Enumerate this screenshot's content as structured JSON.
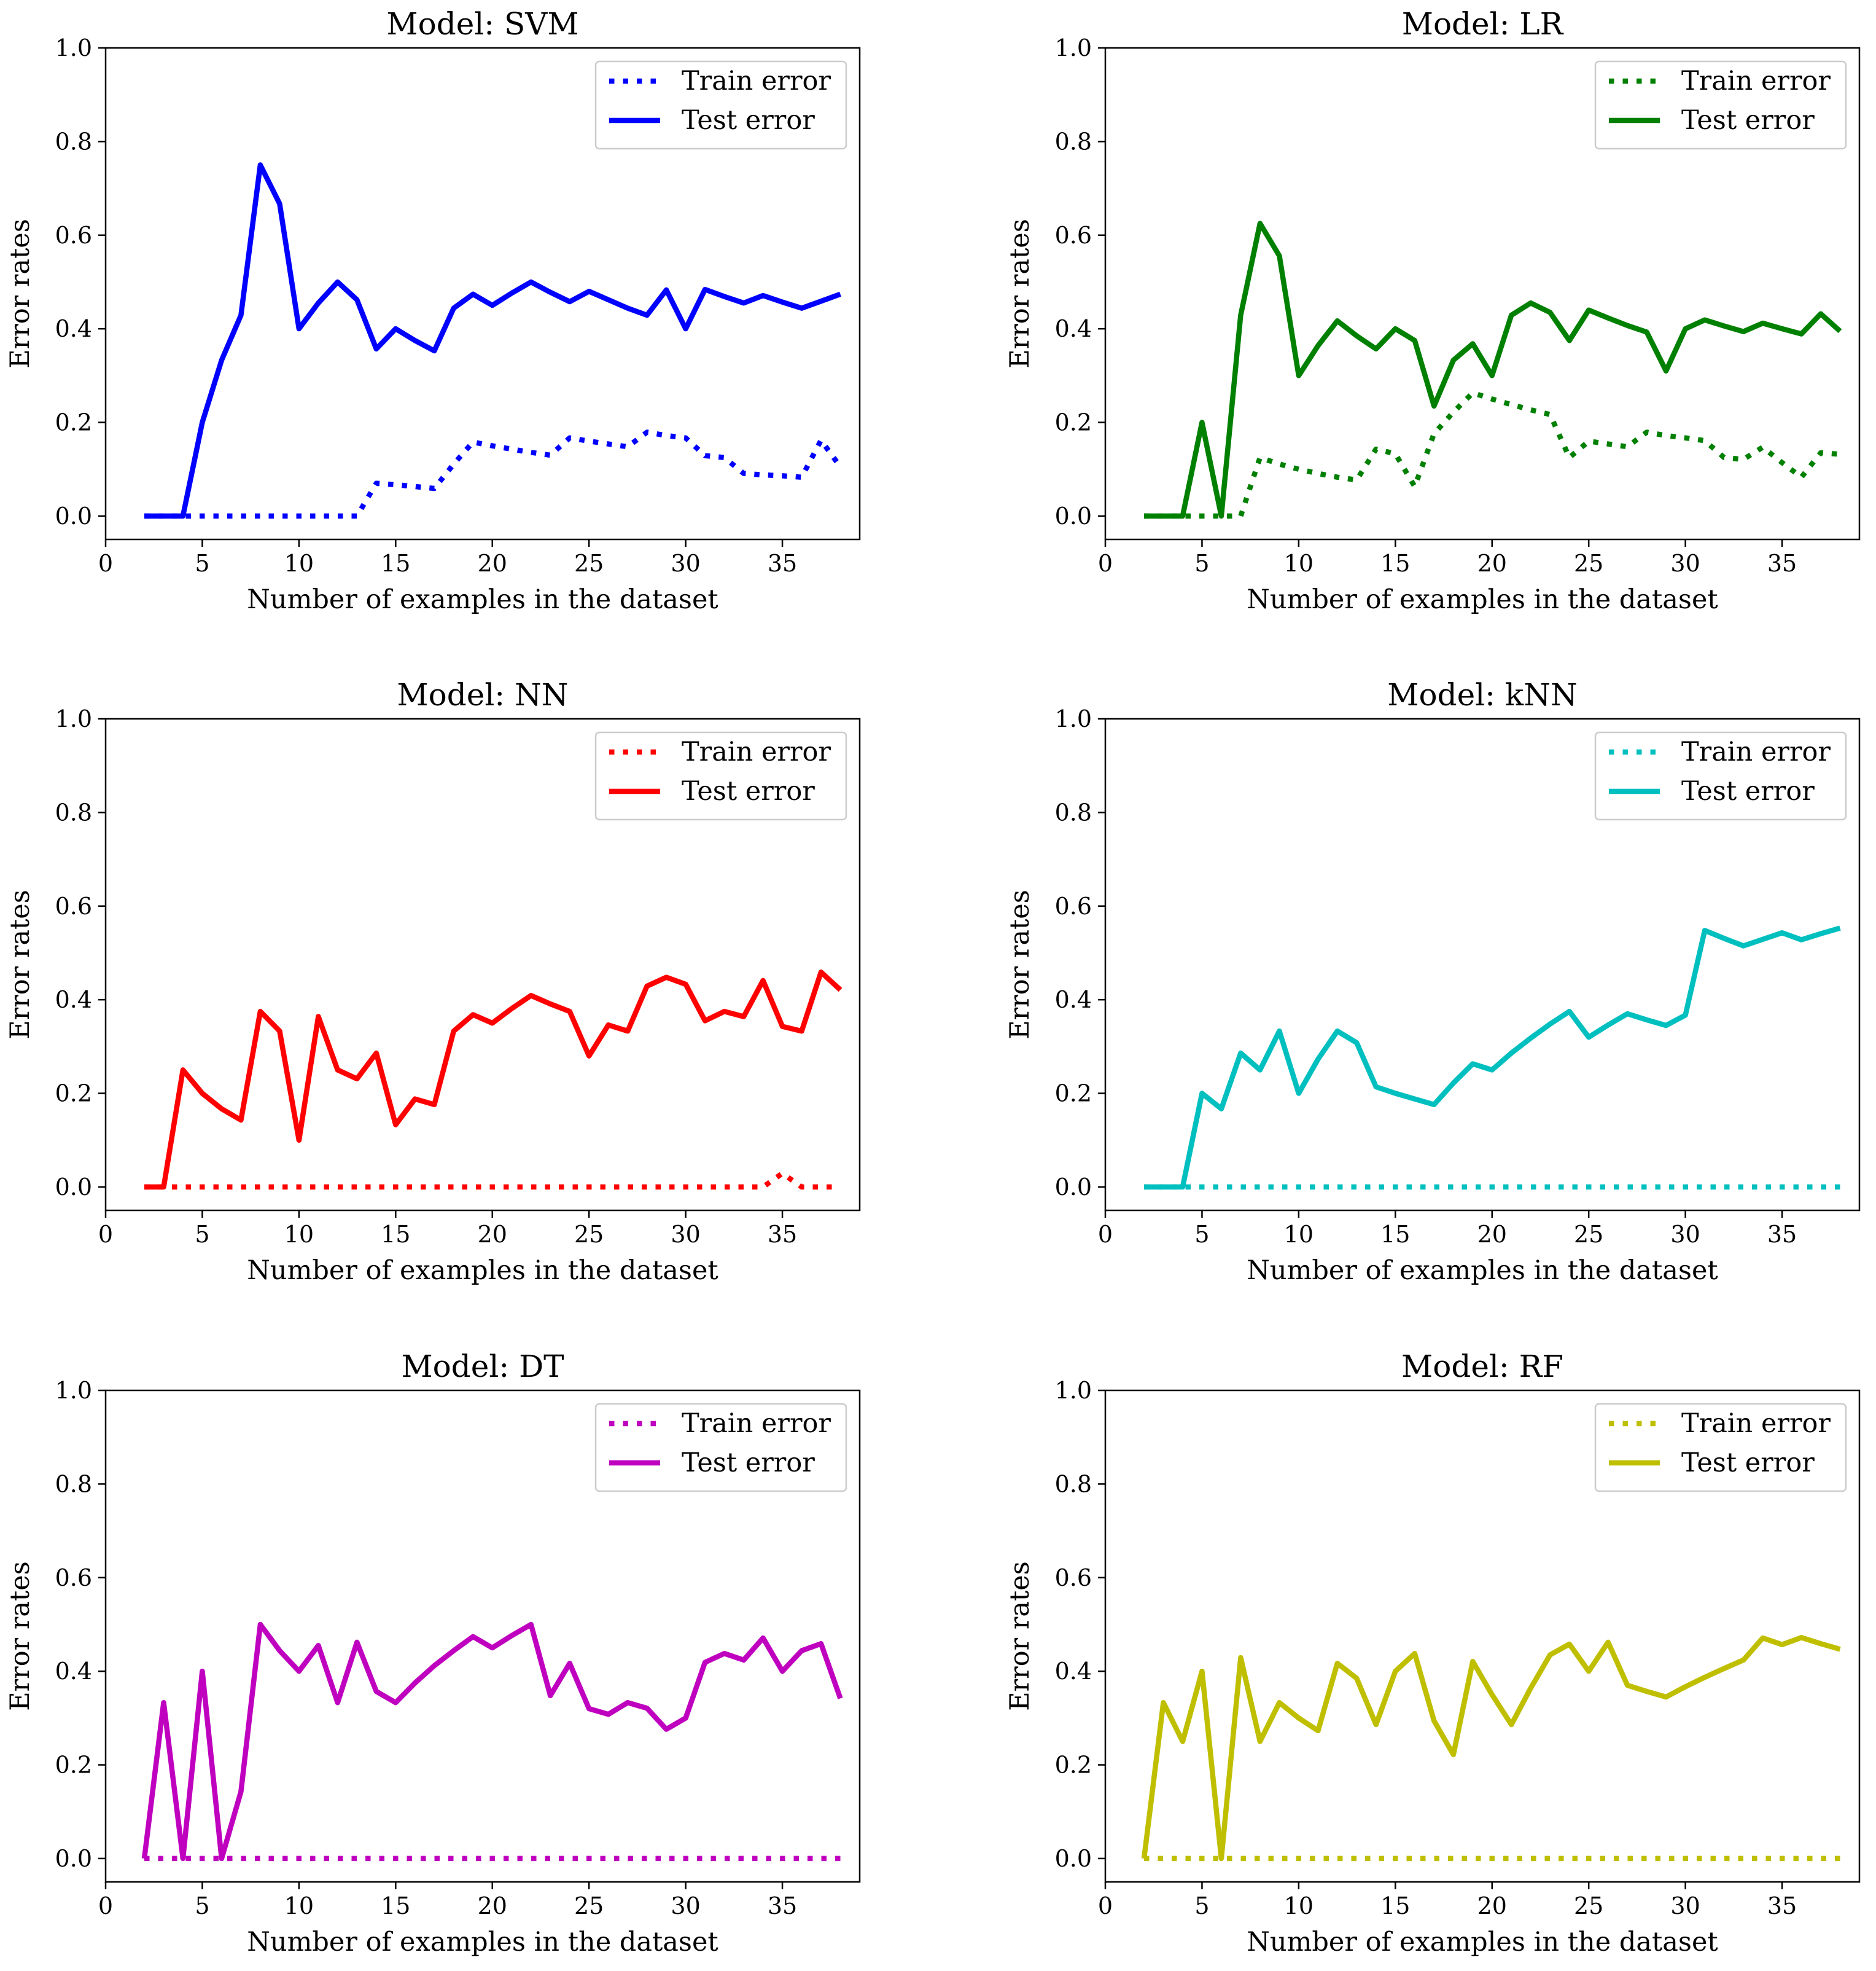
{
  "chart_data": [
    {
      "type": "line",
      "title": "Model: SVM",
      "xlabel": "Number of examples in the dataset",
      "ylabel": "Error rates",
      "xlim": [
        0,
        39
      ],
      "ylim": [
        -0.05,
        1.0
      ],
      "xticks": [
        0,
        5,
        10,
        15,
        20,
        25,
        30,
        35
      ],
      "yticks": [
        0.0,
        0.2,
        0.4,
        0.6,
        0.8,
        1.0
      ],
      "grid": false,
      "legend_position": "top-right",
      "color": "#0000ff",
      "x": [
        2,
        3,
        4,
        5,
        6,
        7,
        8,
        9,
        10,
        11,
        12,
        13,
        14,
        15,
        16,
        17,
        18,
        19,
        20,
        21,
        22,
        23,
        24,
        25,
        26,
        27,
        28,
        29,
        30,
        31,
        32,
        33,
        34,
        35,
        36,
        37,
        38
      ],
      "series": [
        {
          "name": "Train error",
          "style": "dotted",
          "values": [
            0,
            0,
            0,
            0,
            0,
            0,
            0,
            0,
            0,
            0,
            0,
            0,
            0.07,
            0.067,
            0.063,
            0.059,
            0.111,
            0.158,
            0.15,
            0.143,
            0.136,
            0.13,
            0.167,
            0.16,
            0.154,
            0.148,
            0.179,
            0.172,
            0.167,
            0.129,
            0.125,
            0.091,
            0.088,
            0.086,
            0.083,
            0.162,
            0.105
          ]
        },
        {
          "name": "Test error",
          "style": "solid",
          "values": [
            0,
            0,
            0,
            0.2,
            0.333,
            0.429,
            0.75,
            0.667,
            0.4,
            0.455,
            0.5,
            0.462,
            0.357,
            0.4,
            0.375,
            0.353,
            0.444,
            0.474,
            0.45,
            0.476,
            0.5,
            0.478,
            0.458,
            0.48,
            0.462,
            0.444,
            0.429,
            0.483,
            0.4,
            0.484,
            0.469,
            0.455,
            0.471,
            0.457,
            0.444,
            0.459,
            0.474
          ]
        }
      ]
    },
    {
      "type": "line",
      "title": "Model: LR",
      "xlabel": "Number of examples in the dataset",
      "ylabel": "Error rates",
      "xlim": [
        0,
        39
      ],
      "ylim": [
        -0.05,
        1.0
      ],
      "xticks": [
        0,
        5,
        10,
        15,
        20,
        25,
        30,
        35
      ],
      "yticks": [
        0.0,
        0.2,
        0.4,
        0.6,
        0.8,
        1.0
      ],
      "grid": false,
      "legend_position": "top-right",
      "color": "#008000",
      "x": [
        2,
        3,
        4,
        5,
        6,
        7,
        8,
        9,
        10,
        11,
        12,
        13,
        14,
        15,
        16,
        17,
        18,
        19,
        20,
        21,
        22,
        23,
        24,
        25,
        26,
        27,
        28,
        29,
        30,
        31,
        32,
        33,
        34,
        35,
        36,
        37,
        38
      ],
      "series": [
        {
          "name": "Train error",
          "style": "dotted",
          "values": [
            0,
            0,
            0,
            0,
            0,
            0,
            0.125,
            0.111,
            0.1,
            0.091,
            0.083,
            0.077,
            0.143,
            0.133,
            0.063,
            0.176,
            0.222,
            0.263,
            0.25,
            0.238,
            0.227,
            0.217,
            0.125,
            0.16,
            0.154,
            0.148,
            0.179,
            0.172,
            0.167,
            0.161,
            0.125,
            0.121,
            0.147,
            0.114,
            0.083,
            0.135,
            0.132
          ]
        },
        {
          "name": "Test error",
          "style": "solid",
          "values": [
            0,
            0,
            0,
            0.2,
            0,
            0.429,
            0.625,
            0.556,
            0.3,
            0.364,
            0.417,
            0.385,
            0.357,
            0.4,
            0.375,
            0.235,
            0.333,
            0.368,
            0.3,
            0.429,
            0.455,
            0.435,
            0.375,
            0.44,
            0.423,
            0.407,
            0.393,
            0.31,
            0.4,
            0.419,
            0.406,
            0.394,
            0.412,
            0.4,
            0.389,
            0.432,
            0.395
          ]
        }
      ]
    },
    {
      "type": "line",
      "title": "Model: NN",
      "xlabel": "Number of examples in the dataset",
      "ylabel": "Error rates",
      "xlim": [
        0,
        39
      ],
      "ylim": [
        -0.05,
        1.0
      ],
      "xticks": [
        0,
        5,
        10,
        15,
        20,
        25,
        30,
        35
      ],
      "yticks": [
        0.0,
        0.2,
        0.4,
        0.6,
        0.8,
        1.0
      ],
      "grid": false,
      "legend_position": "top-right",
      "color": "#ff0000",
      "x": [
        2,
        3,
        4,
        5,
        6,
        7,
        8,
        9,
        10,
        11,
        12,
        13,
        14,
        15,
        16,
        17,
        18,
        19,
        20,
        21,
        22,
        23,
        24,
        25,
        26,
        27,
        28,
        29,
        30,
        31,
        32,
        33,
        34,
        35,
        36,
        37,
        38
      ],
      "series": [
        {
          "name": "Train error",
          "style": "dotted",
          "values": [
            0,
            0,
            0,
            0,
            0,
            0,
            0,
            0,
            0,
            0,
            0,
            0,
            0,
            0,
            0,
            0,
            0,
            0,
            0,
            0,
            0,
            0,
            0,
            0,
            0,
            0,
            0,
            0,
            0,
            0,
            0,
            0,
            0,
            0.029,
            0,
            0,
            0
          ]
        },
        {
          "name": "Test error",
          "style": "solid",
          "values": [
            0,
            0,
            0.25,
            0.2,
            0.167,
            0.143,
            0.375,
            0.333,
            0.1,
            0.364,
            0.25,
            0.231,
            0.286,
            0.133,
            0.188,
            0.176,
            0.333,
            0.368,
            0.35,
            0.381,
            0.409,
            0.391,
            0.375,
            0.28,
            0.346,
            0.333,
            0.429,
            0.448,
            0.433,
            0.355,
            0.375,
            0.364,
            0.441,
            0.343,
            0.333,
            0.459,
            0.421
          ]
        }
      ]
    },
    {
      "type": "line",
      "title": "Model: kNN",
      "xlabel": "Number of examples in the dataset",
      "ylabel": "Error rates",
      "xlim": [
        0,
        39
      ],
      "ylim": [
        -0.05,
        1.0
      ],
      "xticks": [
        0,
        5,
        10,
        15,
        20,
        25,
        30,
        35
      ],
      "yticks": [
        0.0,
        0.2,
        0.4,
        0.6,
        0.8,
        1.0
      ],
      "grid": false,
      "legend_position": "top-right",
      "color": "#00bfbf",
      "x": [
        2,
        3,
        4,
        5,
        6,
        7,
        8,
        9,
        10,
        11,
        12,
        13,
        14,
        15,
        16,
        17,
        18,
        19,
        20,
        21,
        22,
        23,
        24,
        25,
        26,
        27,
        28,
        29,
        30,
        31,
        32,
        33,
        34,
        35,
        36,
        37,
        38
      ],
      "series": [
        {
          "name": "Train error",
          "style": "dotted",
          "values": [
            0,
            0,
            0,
            0,
            0,
            0,
            0,
            0,
            0,
            0,
            0,
            0,
            0,
            0,
            0,
            0,
            0,
            0,
            0,
            0,
            0,
            0,
            0,
            0,
            0,
            0,
            0,
            0,
            0,
            0,
            0,
            0,
            0,
            0,
            0,
            0,
            0
          ]
        },
        {
          "name": "Test error",
          "style": "solid",
          "values": [
            0,
            0,
            0,
            0.2,
            0.167,
            0.286,
            0.25,
            0.333,
            0.2,
            0.273,
            0.333,
            0.308,
            0.214,
            0.2,
            0.188,
            0.176,
            0.222,
            0.263,
            0.25,
            0.286,
            0.318,
            0.348,
            0.375,
            0.32,
            0.346,
            0.37,
            0.357,
            0.345,
            0.367,
            0.548,
            0.531,
            0.515,
            0.529,
            0.543,
            0.528,
            0.541,
            0.553
          ]
        }
      ]
    },
    {
      "type": "line",
      "title": "Model: DT",
      "xlabel": "Number of examples in the dataset",
      "ylabel": "Error rates",
      "xlim": [
        0,
        39
      ],
      "ylim": [
        -0.05,
        1.0
      ],
      "xticks": [
        0,
        5,
        10,
        15,
        20,
        25,
        30,
        35
      ],
      "yticks": [
        0.0,
        0.2,
        0.4,
        0.6,
        0.8,
        1.0
      ],
      "grid": false,
      "legend_position": "top-right",
      "color": "#bf00bf",
      "x": [
        2,
        3,
        4,
        5,
        6,
        7,
        8,
        9,
        10,
        11,
        12,
        13,
        14,
        15,
        16,
        17,
        18,
        19,
        20,
        21,
        22,
        23,
        24,
        25,
        26,
        27,
        28,
        29,
        30,
        31,
        32,
        33,
        34,
        35,
        36,
        37,
        38
      ],
      "series": [
        {
          "name": "Train error",
          "style": "dotted",
          "values": [
            0,
            0,
            0,
            0,
            0,
            0,
            0,
            0,
            0,
            0,
            0,
            0,
            0,
            0,
            0,
            0,
            0,
            0,
            0,
            0,
            0,
            0,
            0,
            0,
            0,
            0,
            0,
            0,
            0,
            0,
            0,
            0,
            0,
            0,
            0,
            0,
            0
          ]
        },
        {
          "name": "Test error",
          "style": "solid",
          "values": [
            0,
            0.333,
            0,
            0.4,
            0,
            0.143,
            0.5,
            0.444,
            0.4,
            0.455,
            0.333,
            0.462,
            0.357,
            0.333,
            0.375,
            0.412,
            0.444,
            0.474,
            0.45,
            0.476,
            0.5,
            0.348,
            0.417,
            0.32,
            0.308,
            0.333,
            0.321,
            0.276,
            0.3,
            0.419,
            0.438,
            0.424,
            0.471,
            0.4,
            0.444,
            0.459,
            0.342
          ]
        }
      ]
    },
    {
      "type": "line",
      "title": "Model: RF",
      "xlabel": "Number of examples in the dataset",
      "ylabel": "Error rates",
      "xlim": [
        0,
        39
      ],
      "ylim": [
        -0.05,
        1.0
      ],
      "xticks": [
        0,
        5,
        10,
        15,
        20,
        25,
        30,
        35
      ],
      "yticks": [
        0.0,
        0.2,
        0.4,
        0.6,
        0.8,
        1.0
      ],
      "grid": false,
      "legend_position": "top-right",
      "color": "#bfbf00",
      "x": [
        2,
        3,
        4,
        5,
        6,
        7,
        8,
        9,
        10,
        11,
        12,
        13,
        14,
        15,
        16,
        17,
        18,
        19,
        20,
        21,
        22,
        23,
        24,
        25,
        26,
        27,
        28,
        29,
        30,
        31,
        32,
        33,
        34,
        35,
        36,
        37,
        38
      ],
      "series": [
        {
          "name": "Train error",
          "style": "dotted",
          "values": [
            0,
            0,
            0,
            0,
            0,
            0,
            0,
            0,
            0,
            0,
            0,
            0,
            0,
            0,
            0,
            0,
            0,
            0,
            0,
            0,
            0,
            0,
            0,
            0,
            0,
            0,
            0,
            0,
            0,
            0,
            0,
            0,
            0,
            0,
            0,
            0,
            0
          ]
        },
        {
          "name": "Test error",
          "style": "solid",
          "values": [
            0,
            0.333,
            0.25,
            0.4,
            0,
            0.429,
            0.25,
            0.333,
            0.3,
            0.273,
            0.417,
            0.385,
            0.286,
            0.4,
            0.438,
            0.294,
            0.222,
            0.421,
            0.35,
            0.286,
            0.364,
            0.435,
            0.458,
            0.4,
            0.462,
            0.37,
            0.357,
            0.345,
            0.367,
            0.387,
            0.406,
            0.424,
            0.471,
            0.457,
            0.472,
            0.459,
            0.447
          ]
        }
      ]
    }
  ]
}
